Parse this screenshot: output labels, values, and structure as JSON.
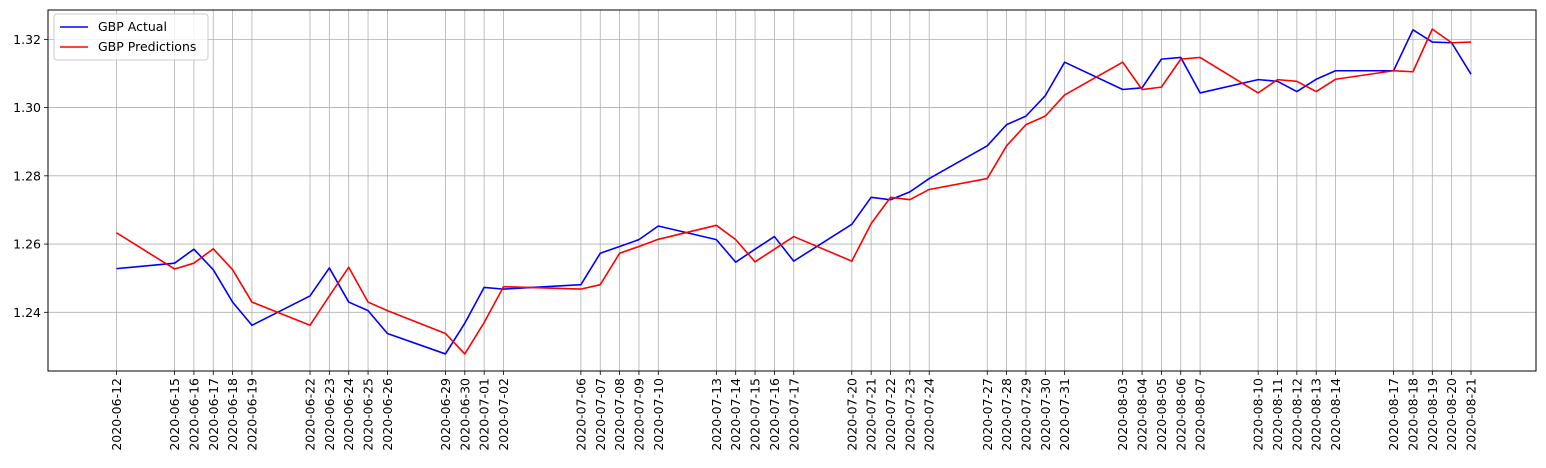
{
  "chart_data": {
    "type": "line",
    "title": "",
    "xlabel": "",
    "ylabel": "",
    "grid": true,
    "legend_placement": "upper-left",
    "ylim": [
      1.2228,
      1.3286
    ],
    "yticks": [
      1.24,
      1.26,
      1.28,
      1.3,
      1.32
    ],
    "ytick_labels": [
      "1.24",
      "1.26",
      "1.28",
      "1.30",
      "1.32"
    ],
    "x": [
      "2020-06-12",
      "2020-06-15",
      "2020-06-16",
      "2020-06-17",
      "2020-06-18",
      "2020-06-19",
      "2020-06-22",
      "2020-06-23",
      "2020-06-24",
      "2020-06-25",
      "2020-06-26",
      "2020-06-29",
      "2020-06-30",
      "2020-07-01",
      "2020-07-02",
      "2020-07-06",
      "2020-07-07",
      "2020-07-08",
      "2020-07-09",
      "2020-07-10",
      "2020-07-13",
      "2020-07-14",
      "2020-07-15",
      "2020-07-16",
      "2020-07-17",
      "2020-07-20",
      "2020-07-21",
      "2020-07-22",
      "2020-07-23",
      "2020-07-24",
      "2020-07-27",
      "2020-07-28",
      "2020-07-29",
      "2020-07-30",
      "2020-07-31",
      "2020-08-03",
      "2020-08-04",
      "2020-08-05",
      "2020-08-06",
      "2020-08-07",
      "2020-08-10",
      "2020-08-11",
      "2020-08-12",
      "2020-08-13",
      "2020-08-14",
      "2020-08-17",
      "2020-08-18",
      "2020-08-19",
      "2020-08-20",
      "2020-08-21"
    ],
    "series": [
      {
        "name": "GBP Actual",
        "color": "#0000ff",
        "values": [
          1.2528,
          1.2544,
          1.2585,
          1.2525,
          1.243,
          1.2362,
          1.2448,
          1.253,
          1.243,
          1.2405,
          1.2338,
          1.2278,
          1.2368,
          1.2473,
          1.2468,
          1.2481,
          1.2573,
          1.2593,
          1.2613,
          1.2653,
          1.2613,
          1.2547,
          1.2585,
          1.2622,
          1.255,
          1.2658,
          1.2737,
          1.273,
          1.2753,
          1.2792,
          1.2888,
          1.295,
          1.2975,
          1.3035,
          1.3133,
          1.3053,
          1.3058,
          1.3142,
          1.3147,
          1.3043,
          1.3082,
          1.3077,
          1.3047,
          1.3083,
          1.3108,
          1.3108,
          1.3228,
          1.3192,
          1.319,
          1.3098
        ]
      },
      {
        "name": "GBP Predictions",
        "color": "#ff0000",
        "values": [
          1.2633,
          1.2527,
          1.2544,
          1.2586,
          1.2525,
          1.243,
          1.2362,
          1.2448,
          1.2532,
          1.243,
          1.2405,
          1.2338,
          1.2278,
          1.237,
          1.2475,
          1.2468,
          1.2481,
          1.2573,
          1.2593,
          1.2614,
          1.2655,
          1.2613,
          1.2548,
          1.2585,
          1.2622,
          1.255,
          1.266,
          1.2737,
          1.273,
          1.276,
          1.2792,
          1.2888,
          1.295,
          1.2975,
          1.3037,
          1.3133,
          1.3053,
          1.306,
          1.3142,
          1.3147,
          1.3043,
          1.3082,
          1.3077,
          1.3047,
          1.3083,
          1.3108,
          1.3105,
          1.323,
          1.319,
          1.3192
        ]
      }
    ]
  }
}
